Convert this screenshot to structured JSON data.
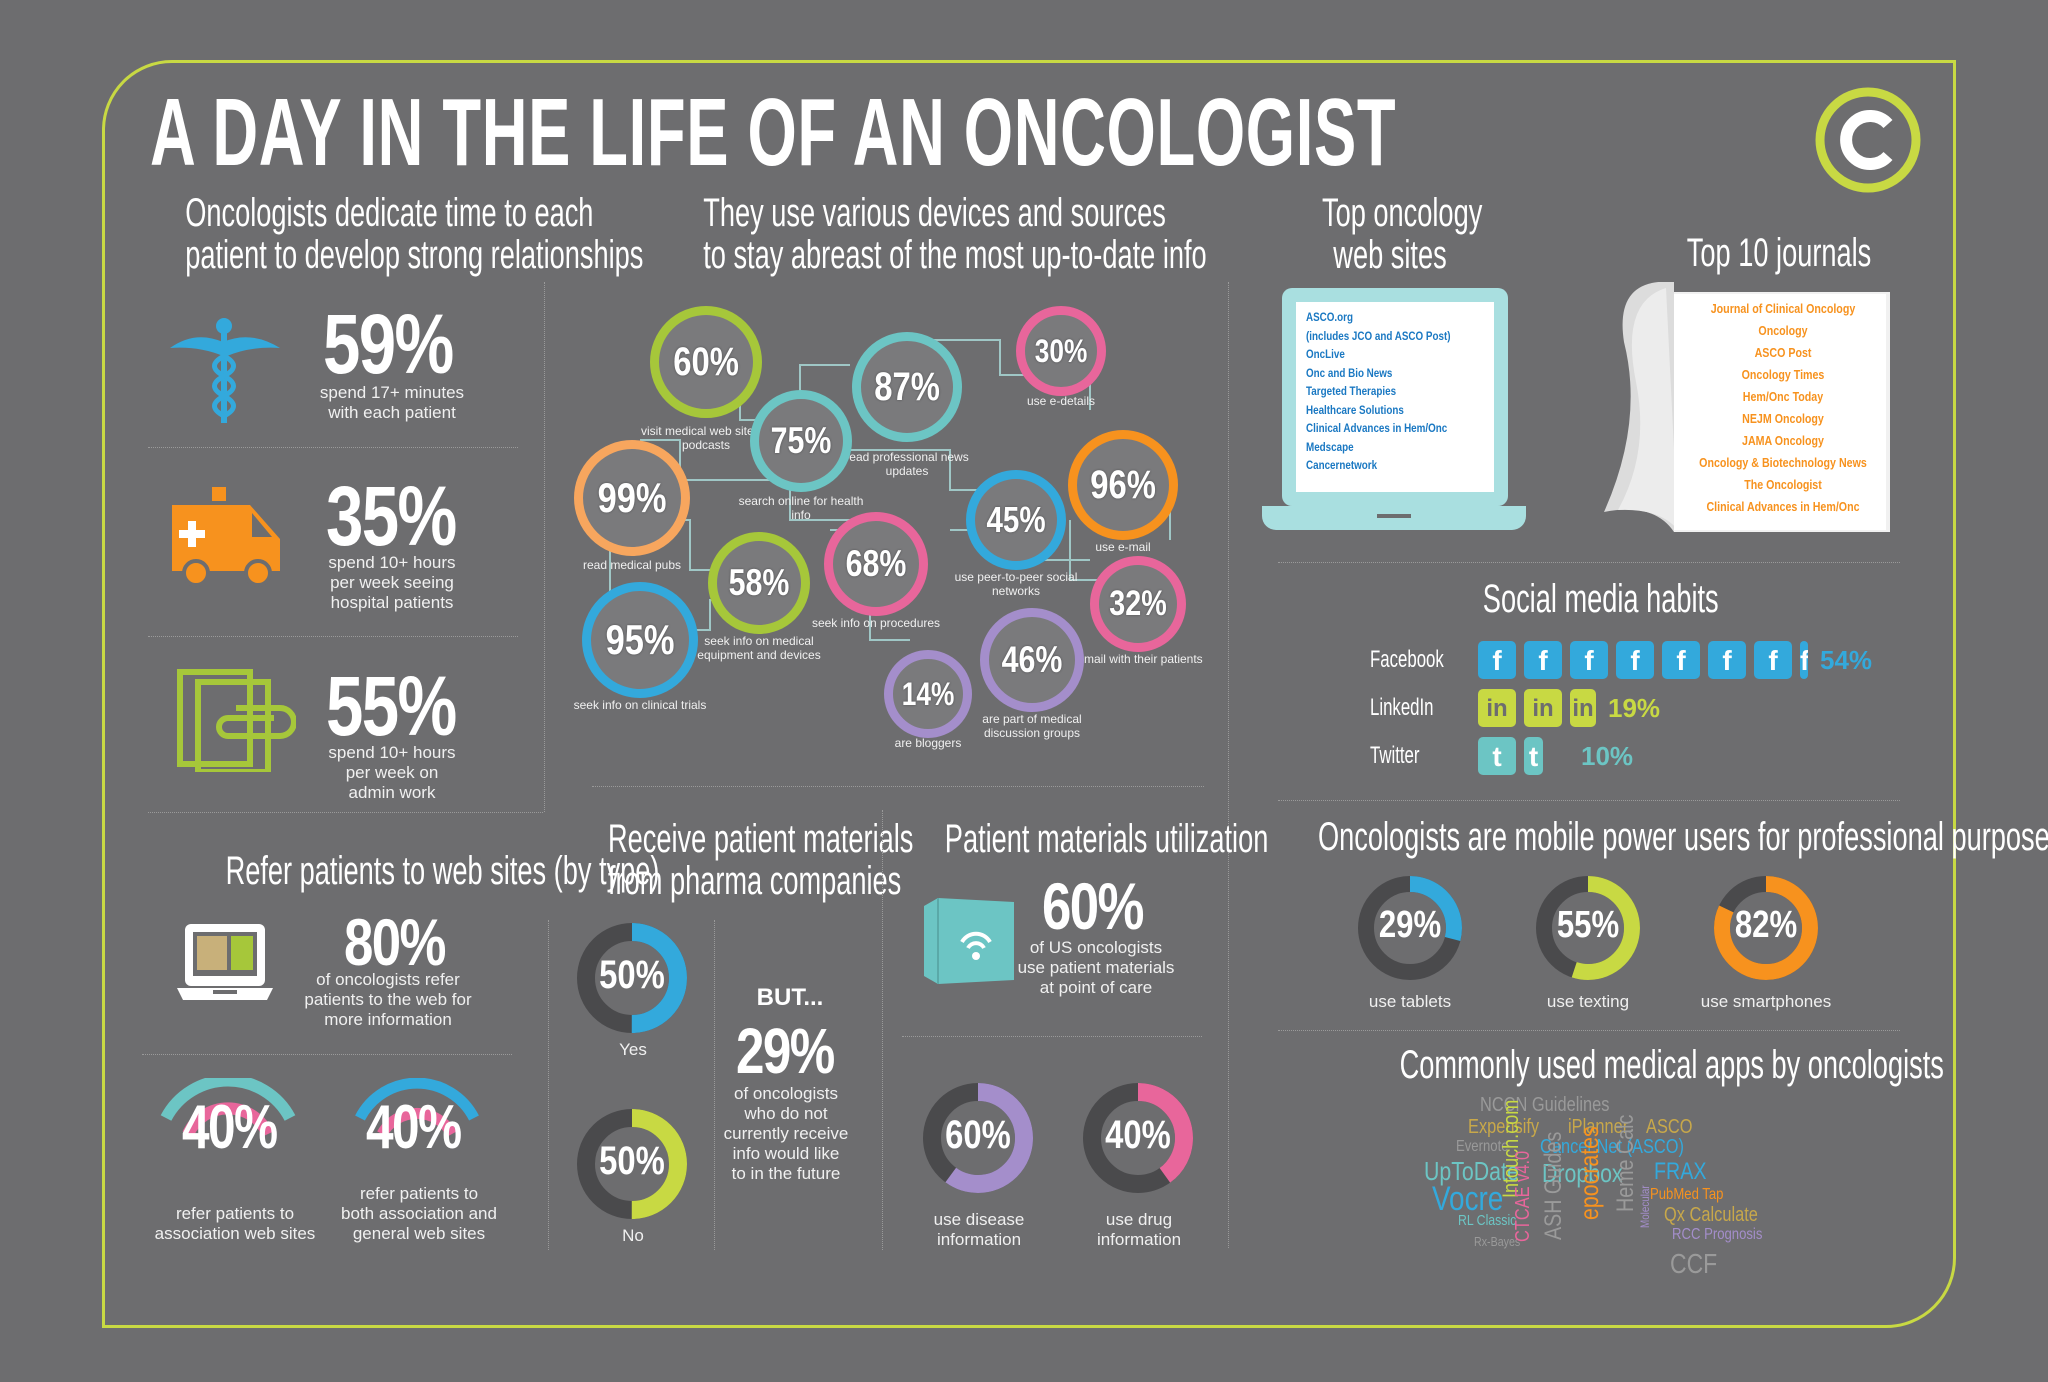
{
  "title": "A DAY IN THE LIFE OF AN ONCOLOGIST",
  "colors": {
    "accent": "#c8d943",
    "cyan": "#33a9dc",
    "orange": "#f7921e",
    "green": "#a6c73a",
    "pink": "#e8669b",
    "purple": "#a48ecb",
    "teal": "#6cc5c4",
    "background": "#6d6d6f"
  },
  "time_section": {
    "heading_1": "Oncologists dedicate time to each",
    "heading_2": "patient to develop strong relationships",
    "items": [
      {
        "value": "59%",
        "line1": "spend 17+ minutes",
        "line2": "with each patient",
        "line3": "",
        "icon": "caduceus-icon"
      },
      {
        "value": "35%",
        "line1": "spend 10+ hours",
        "line2": "per week seeing",
        "line3": "hospital patients",
        "icon": "ambulance-icon"
      },
      {
        "value": "55%",
        "line1": "spend 10+ hours",
        "line2": "per week on",
        "line3": "admin work",
        "icon": "paperclip-icon"
      }
    ]
  },
  "devices": {
    "heading_1": "They use various devices and sources",
    "heading_2": "to stay abreast of the most up-to-date info",
    "bubbles": [
      {
        "value": "60%",
        "caption": "visit medical web sites & podcasts",
        "color": "#a6c73a"
      },
      {
        "value": "87%",
        "caption": "read professional news updates",
        "color": "#6cc5c4"
      },
      {
        "value": "30%",
        "caption": "use e-details",
        "color": "#e8669b"
      },
      {
        "value": "75%",
        "caption": "search online for health info",
        "color": "#6cc5c4"
      },
      {
        "value": "99%",
        "caption": "read medical pubs",
        "color": "#f7a65e"
      },
      {
        "value": "96%",
        "caption": "use e-mail",
        "color": "#f7921e"
      },
      {
        "value": "45%",
        "caption": "use peer-to-peer social networks",
        "color": "#33a9dc"
      },
      {
        "value": "58%",
        "caption": "seek info on medical equipment and devices",
        "color": "#a6c73a"
      },
      {
        "value": "68%",
        "caption": "seek info on procedures",
        "color": "#e8669b"
      },
      {
        "value": "32%",
        "caption": "e-mail with their patients",
        "color": "#e8669b"
      },
      {
        "value": "95%",
        "caption": "seek info on clinical trials",
        "color": "#33a9dc"
      },
      {
        "value": "46%",
        "caption": "are part of medical discussion groups",
        "color": "#a48ecb"
      },
      {
        "value": "14%",
        "caption": "are bloggers",
        "color": "#a48ecb"
      }
    ]
  },
  "websites": {
    "heading_1": "Top oncology",
    "heading_2": "web sites",
    "items": [
      "ASCO.org",
      "(includes JCO and ASCO Post)",
      "OncLive",
      "Onc and Bio News",
      "Targeted Therapies",
      "Healthcare Solutions",
      "Clinical Advances in Hem/Onc",
      "Medscape",
      "Cancernetwork"
    ]
  },
  "journals": {
    "heading": "Top 10 journals",
    "items": [
      "Journal of Clinical Oncology",
      "Oncology",
      "ASCO Post",
      "Oncology Times",
      "Hem/Onc Today",
      "NEJM Oncology",
      "JAMA Oncology",
      "Oncology & Biotechnology News",
      "The Oncologist",
      "Clinical Advances in Hem/Onc"
    ]
  },
  "social": {
    "heading": "Social media habits",
    "rows": [
      {
        "label": "Facebook",
        "value": "54%",
        "percent": 54,
        "glyph": "f",
        "color": "#33a9dc"
      },
      {
        "label": "LinkedIn",
        "value": "19%",
        "percent": 19,
        "glyph": "in",
        "color": "#c8d943"
      },
      {
        "label": "Twitter",
        "value": "10%",
        "percent": 10,
        "glyph": "t",
        "color": "#6cc5c4"
      }
    ]
  },
  "mobile": {
    "heading": "Oncologists are mobile power users for professional purposes",
    "items": [
      {
        "value": "29%",
        "fraction": 0.29,
        "caption": "use tablets",
        "color": "#33a9dc",
        "icon": "tablet-icon"
      },
      {
        "value": "55%",
        "fraction": 0.55,
        "caption": "use texting",
        "color": "#c8d943",
        "icon": "chat-icon"
      },
      {
        "value": "82%",
        "fraction": 0.82,
        "caption": "use smartphones",
        "color": "#f7921e",
        "icon": "smartphone-icon"
      }
    ]
  },
  "refer": {
    "heading": "Refer patients to web sites (by type)",
    "main_value": "80%",
    "main_line1": "of oncologists refer",
    "main_line2": "patients to the web for",
    "main_line3": "more information",
    "a_value": "40%",
    "a_line1": "refer patients to",
    "a_line2": "association web sites",
    "b_value": "40%",
    "b_line1": "refer patients to",
    "b_line2": "both association and",
    "b_line3": "general web sites"
  },
  "pharma": {
    "heading_1": "Receive patient materials",
    "heading_2": "from pharma companies",
    "yes_value": "50%",
    "yes_fraction": 0.5,
    "yes_label": "Yes",
    "no_value": "50%",
    "no_fraction": 0.5,
    "no_label": "No",
    "but": "BUT...",
    "but_value": "29%",
    "but_line1": "of oncologists",
    "but_line2": "who do not",
    "but_line3": "currently receive",
    "but_line4": "info would like",
    "but_line5": "to in the future"
  },
  "utilization": {
    "heading": "Patient materials utilization",
    "value": "60%",
    "line1": "of US oncologists",
    "line2": "use patient materials",
    "line3": "at point of care",
    "d1_value": "60%",
    "d1_fraction": 0.6,
    "d1_line1": "use disease",
    "d1_line2": "information",
    "d2_value": "40%",
    "d2_fraction": 0.4,
    "d2_line1": "use drug",
    "d2_line2": "information"
  },
  "apps": {
    "heading": "Commonly used medical apps by oncologists",
    "words": [
      "NCCN Guidelines",
      "Expensify",
      "iPlanner",
      "ASCO",
      "Evernote",
      "Cancer.Net (ASCO)",
      "UpToDate",
      "Dropbox",
      "FRAX",
      "Vocre",
      "Intouch.com",
      "PubMed Tap",
      "Qx Calculate",
      "RL Classic",
      "RCC Prognosis",
      "Rx-Bayes",
      "CTCAE v4.0",
      "ASH Guides",
      "epocrates",
      "Heme Calc",
      "Molecular",
      "CCF"
    ]
  }
}
